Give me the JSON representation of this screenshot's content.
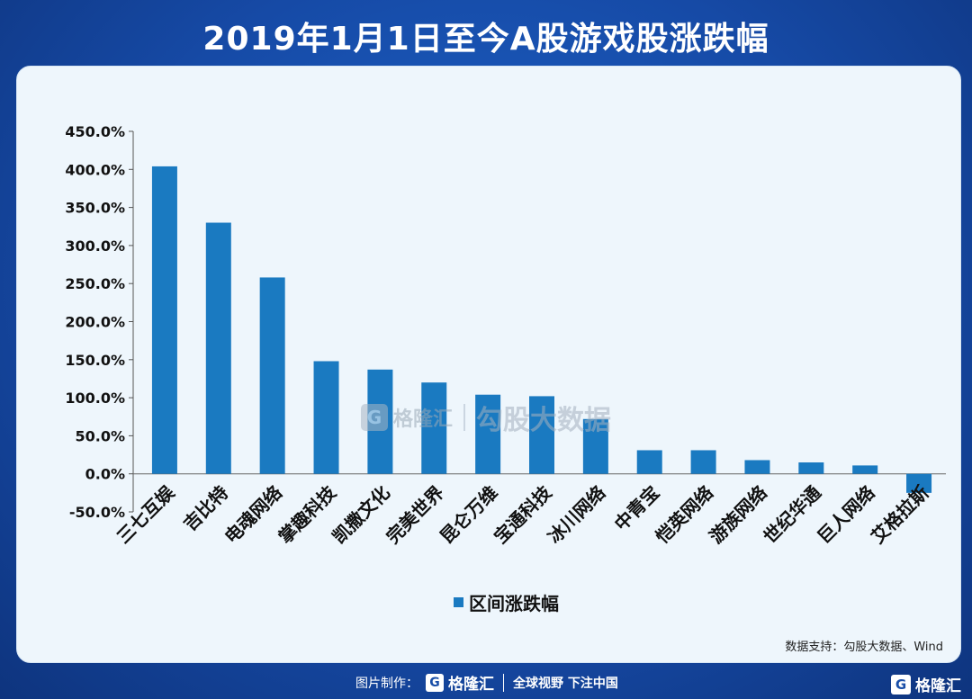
{
  "title": "2019年1月1日至今A股游戏股涨跌幅",
  "chart_data": {
    "type": "bar",
    "title": "2019年1月1日至今A股游戏股涨跌幅",
    "categories": [
      "三七互娱",
      "吉比特",
      "电魂网络",
      "掌趣科技",
      "凯撒文化",
      "完美世界",
      "昆仑万维",
      "宝通科技",
      "冰川网络",
      "中青宝",
      "恺英网络",
      "游族网络",
      "世纪华通",
      "巨人网络",
      "艾格拉斯"
    ],
    "series": [
      {
        "name": "区间涨跌幅",
        "values": [
          404,
          330,
          258,
          148,
          137,
          120,
          104,
          102,
          72,
          31,
          31,
          18,
          15,
          11,
          -25
        ]
      }
    ],
    "ylim": [
      -50,
      450
    ],
    "yticks": [
      450,
      400,
      350,
      300,
      250,
      200,
      150,
      100,
      50,
      0,
      -50
    ],
    "ytick_labels": [
      "450.0%",
      "400.0%",
      "350.0%",
      "300.0%",
      "250.0%",
      "200.0%",
      "150.0%",
      "100.0%",
      "50.0%",
      "0.0%",
      "-50.0%"
    ],
    "xlabel": "",
    "ylabel": "",
    "grid": false,
    "legend": "bottom-center",
    "bar_color": "#1a7ac1"
  },
  "legend_label": "区间涨跌幅",
  "watermark": {
    "logo": "G",
    "brand": "格隆汇",
    "source": "勾股大数据"
  },
  "source_note": "数据支持：勾股大数据、Wind",
  "footer": {
    "label": "图片制作：",
    "logo": "G",
    "brand": "格隆汇",
    "slogan": "全球视野 下注中国"
  },
  "corner": {
    "logo": "G",
    "brand": "格隆汇"
  },
  "colors": {
    "background": "#164aa6",
    "panel": "#eef6fc",
    "bar": "#1a7ac1"
  }
}
